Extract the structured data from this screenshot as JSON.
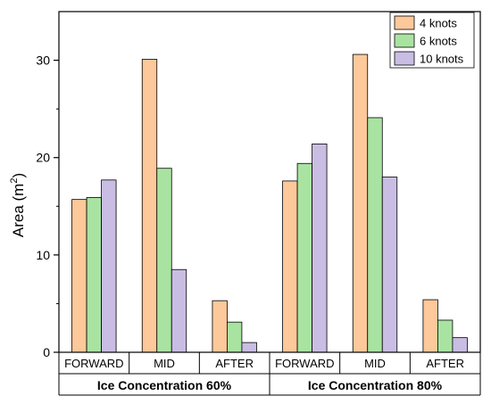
{
  "chart_data": {
    "type": "bar",
    "ylabel": "Area (m",
    "ylabel_sup": "2",
    "ylabel_close": ")",
    "ylim": [
      0,
      35
    ],
    "yticks": [
      0,
      10,
      20,
      30
    ],
    "grid": false,
    "legend_position": "top-right",
    "groups": [
      {
        "label": "Ice Concentration 60%",
        "categories": [
          "FORWARD",
          "MID",
          "AFTER"
        ],
        "series": [
          {
            "name": "4 knots",
            "values": [
              15.7,
              30.1,
              5.3
            ]
          },
          {
            "name": "6 knots",
            "values": [
              15.9,
              18.9,
              3.1
            ]
          },
          {
            "name": "10 knots",
            "values": [
              17.7,
              8.5,
              1.0
            ]
          }
        ]
      },
      {
        "label": "Ice Concentration 80%",
        "categories": [
          "FORWARD",
          "MID",
          "AFTER"
        ],
        "series": [
          {
            "name": "4 knots",
            "values": [
              17.6,
              30.6,
              5.4
            ]
          },
          {
            "name": "6 knots",
            "values": [
              19.4,
              24.1,
              3.3
            ]
          },
          {
            "name": "10 knots",
            "values": [
              21.4,
              18.0,
              1.5
            ]
          }
        ]
      }
    ],
    "legend": [
      "4 knots",
      "6 knots",
      "10 knots"
    ],
    "colors": [
      "#FDC89A",
      "#A9E3A1",
      "#C9BDE3"
    ],
    "stroke_color": "#000000"
  }
}
